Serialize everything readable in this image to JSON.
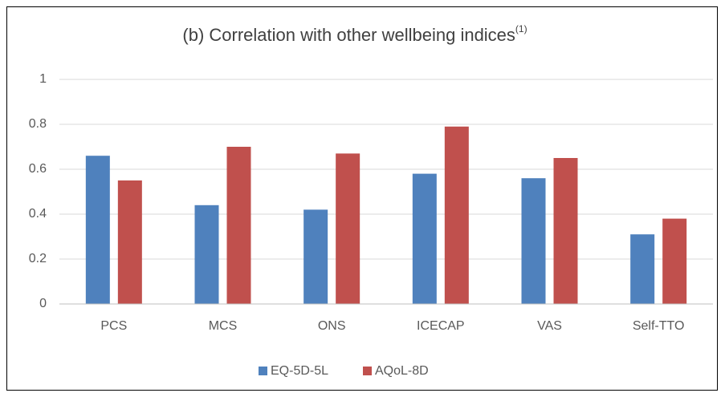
{
  "chart_data": {
    "type": "bar",
    "title": "(b) Correlation with other wellbeing indices",
    "title_note": "(1)",
    "categories": [
      "PCS",
      "MCS",
      "ONS",
      "ICECAP",
      "VAS",
      "Self-TTO"
    ],
    "series": [
      {
        "name": "EQ-5D-5L",
        "color": "#4f81bd",
        "values": [
          0.66,
          0.44,
          0.42,
          0.58,
          0.56,
          0.31
        ]
      },
      {
        "name": "AQoL-8D",
        "color": "#c0504d",
        "values": [
          0.55,
          0.7,
          0.67,
          0.79,
          0.65,
          0.38
        ]
      }
    ],
    "ylim": [
      0,
      1
    ],
    "yticks": [
      0,
      0.2,
      0.4,
      0.6,
      0.8,
      1
    ],
    "grid": true,
    "legend": "bottom"
  }
}
